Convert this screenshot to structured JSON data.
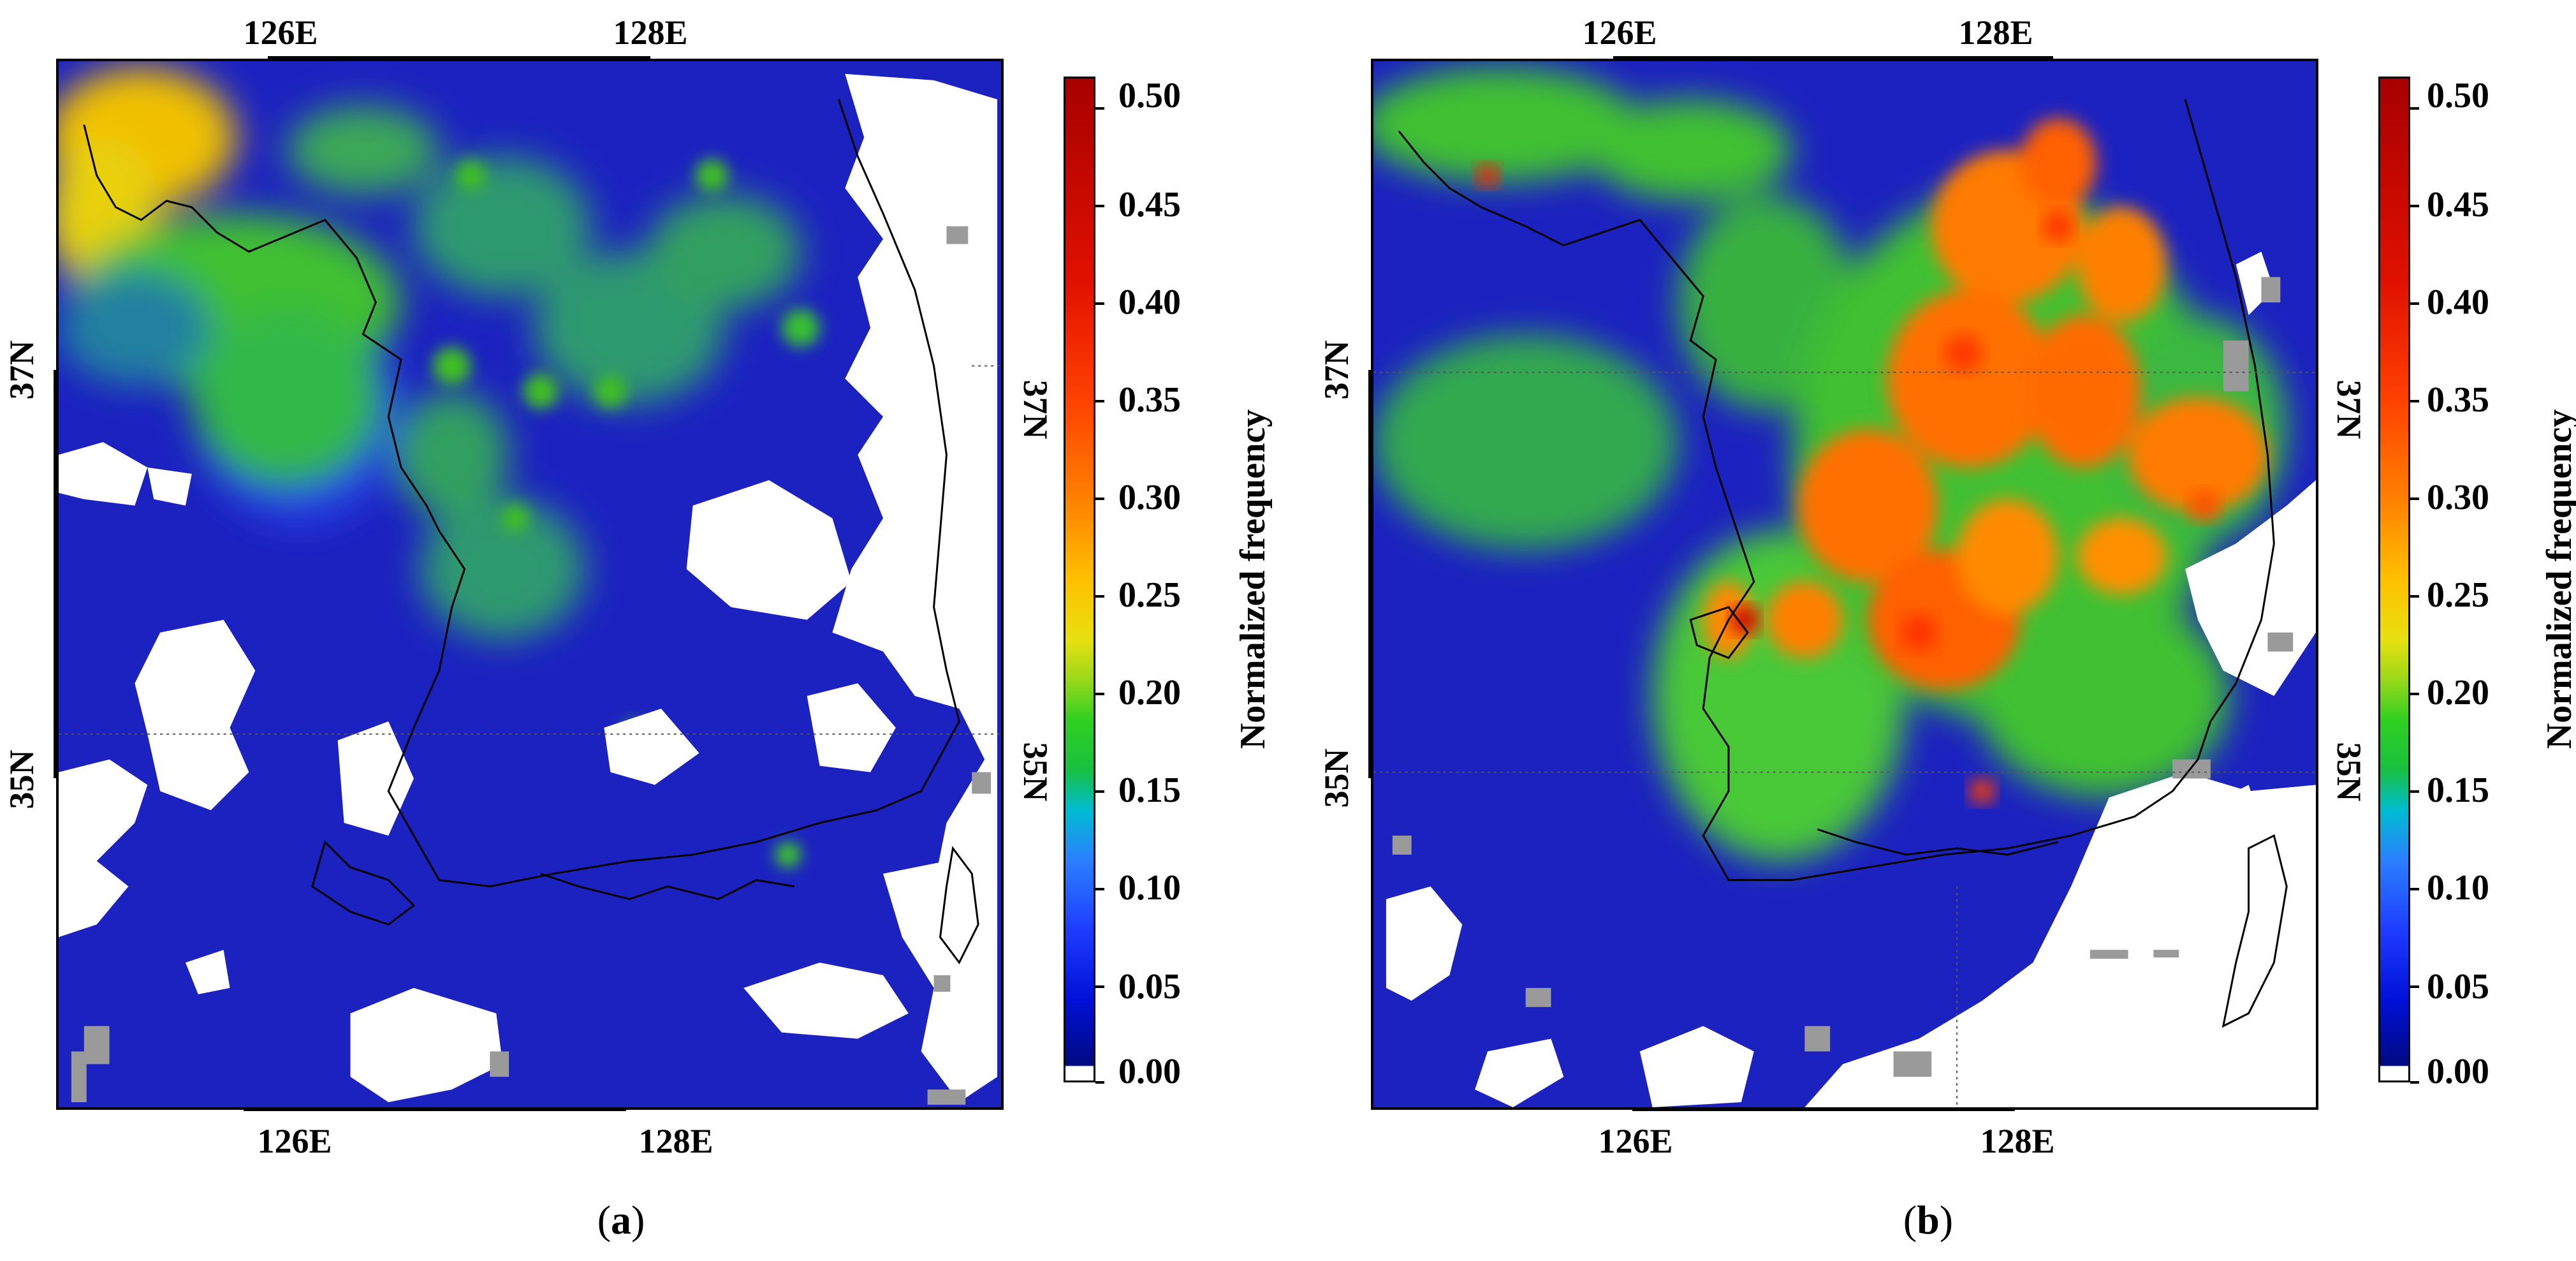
{
  "figure": {
    "panels": [
      {
        "id": "a",
        "caption_open": "(",
        "caption_letter": "a",
        "caption_close": ")",
        "top_ticks": [
          "126E",
          "128E"
        ],
        "bottom_ticks": [
          "126E",
          "128E"
        ],
        "left_ticks": [
          "37N",
          "35N"
        ],
        "right_ticks": [
          "37N",
          "35N"
        ],
        "colorbar": {
          "title": "Normalized frequency",
          "min": 0.0,
          "max": 0.5,
          "tick_labels": [
            "0.00",
            "0.05",
            "0.10",
            "0.15",
            "0.20",
            "0.25",
            "0.30",
            "0.35",
            "0.40",
            "0.45",
            "0.50"
          ]
        }
      },
      {
        "id": "b",
        "caption_open": "(",
        "caption_letter": "b",
        "caption_close": ")",
        "top_ticks": [
          "126E",
          "128E"
        ],
        "bottom_ticks": [
          "126E",
          "128E"
        ],
        "left_ticks": [
          "37N",
          "35N"
        ],
        "right_ticks": [
          "37N",
          "35N"
        ],
        "colorbar": {
          "title": "Normalized frequency",
          "min": 0.0,
          "max": 0.5,
          "tick_labels": [
            "0.00",
            "0.05",
            "0.10",
            "0.15",
            "0.20",
            "0.25",
            "0.30",
            "0.35",
            "0.40",
            "0.45",
            "0.50"
          ]
        }
      }
    ]
  },
  "colors": {
    "background_field": "#1c22c0",
    "no_data": "#ffffff",
    "missing": "#9a9a9a",
    "coastline": "#000000"
  }
}
